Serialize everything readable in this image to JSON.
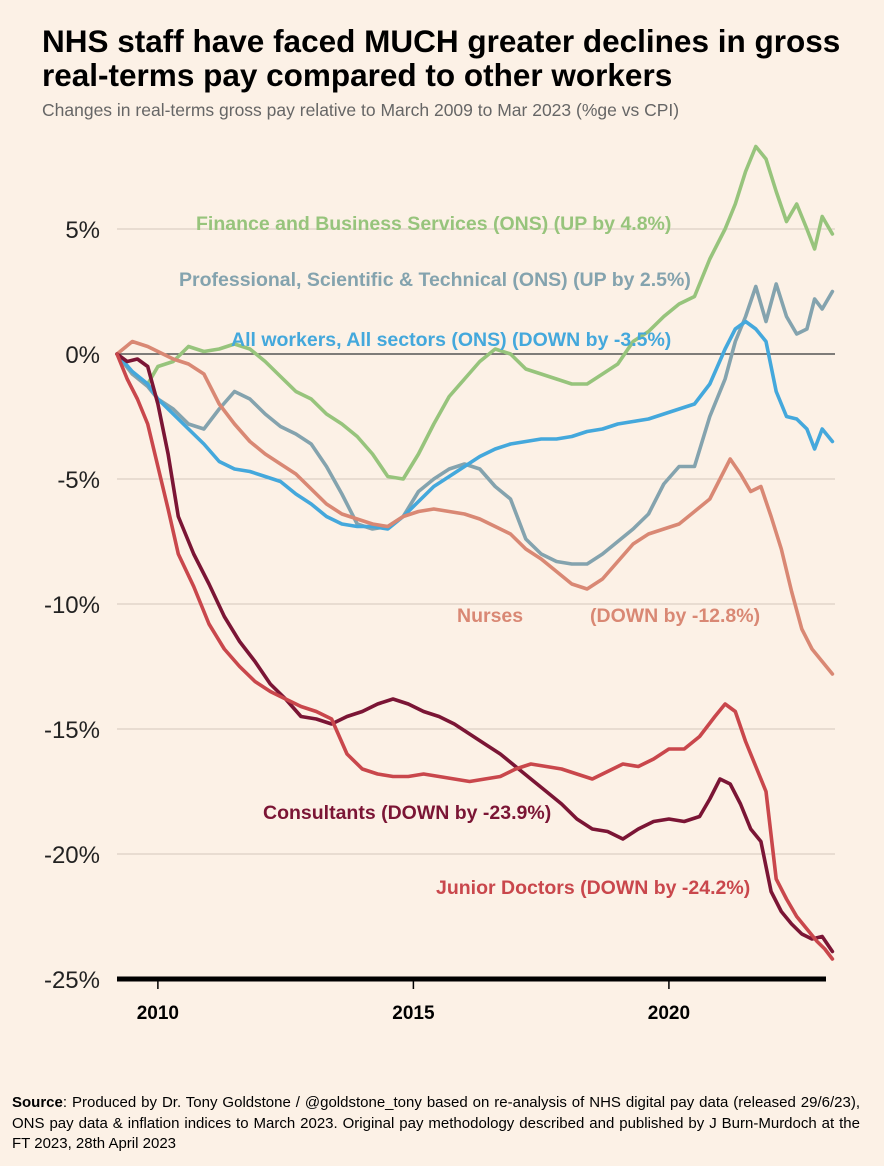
{
  "header": {
    "title": "NHS staff have faced MUCH greater declines in gross real-terms pay compared to other workers",
    "subtitle": "Changes in real-terms gross pay relative to March 2009 to Mar 2023 (%ge vs CPI)"
  },
  "source": {
    "label": "Source",
    "text": ": Produced by Dr. Tony Goldstone / @goldstone_tony based on re-analysis of NHS digital pay data (released 29/6/23), ONS pay data & inflation indices to March 2023.  Original pay methodology described and published by J Burn-Murdoch at the FT 2023, 28th April 2023"
  },
  "chart_data": {
    "type": "line",
    "title": "NHS staff have faced MUCH greater declines in gross real-terms pay compared to other workers",
    "subtitle": "Changes in real-terms gross pay relative to March 2009 to Mar 2023 (%ge vs CPI)",
    "xlabel": "",
    "ylabel": "",
    "xlim": [
      2009.2,
      2023.25
    ],
    "ylim": [
      -25,
      9
    ],
    "y_ticks": [
      {
        "value": 5,
        "label": "5%"
      },
      {
        "value": 0,
        "label": "0%"
      },
      {
        "value": -5,
        "label": "-5%"
      },
      {
        "value": -10,
        "label": "-10%"
      },
      {
        "value": -15,
        "label": "-15%"
      },
      {
        "value": -20,
        "label": "-20%"
      },
      {
        "value": -25,
        "label": "-25%"
      }
    ],
    "x_ticks": [
      {
        "value": 2010,
        "label": "2010"
      },
      {
        "value": 2015,
        "label": "2015"
      },
      {
        "value": 2020,
        "label": "2020"
      }
    ],
    "grid": true,
    "series": [
      {
        "name": "Finance and Business Services (ONS)",
        "label": "Finance and Business Services (ONS) (UP by 4.8%)",
        "color": "#97C47C",
        "x": [
          2009.2,
          2009.5,
          2009.8,
          2010.0,
          2010.3,
          2010.6,
          2010.9,
          2011.2,
          2011.5,
          2011.8,
          2012.1,
          2012.4,
          2012.7,
          2013.0,
          2013.3,
          2013.6,
          2013.9,
          2014.2,
          2014.5,
          2014.8,
          2015.1,
          2015.4,
          2015.7,
          2016.0,
          2016.3,
          2016.6,
          2016.9,
          2017.2,
          2017.5,
          2017.8,
          2018.1,
          2018.4,
          2018.7,
          2019.0,
          2019.3,
          2019.6,
          2019.9,
          2020.2,
          2020.5,
          2020.8,
          2021.1,
          2021.3,
          2021.5,
          2021.7,
          2021.9,
          2022.1,
          2022.3,
          2022.5,
          2022.7,
          2022.85,
          2023.0,
          2023.2
        ],
        "y": [
          0,
          -0.8,
          -1.2,
          -0.5,
          -0.3,
          0.3,
          0.1,
          0.2,
          0.4,
          0.2,
          -0.3,
          -0.9,
          -1.5,
          -1.8,
          -2.4,
          -2.8,
          -3.3,
          -4.0,
          -4.9,
          -5.0,
          -4.0,
          -2.8,
          -1.7,
          -1.0,
          -0.3,
          0.2,
          0.0,
          -0.6,
          -0.8,
          -1.0,
          -1.2,
          -1.2,
          -0.8,
          -0.4,
          0.5,
          0.9,
          1.5,
          2.0,
          2.3,
          3.8,
          5.0,
          6.0,
          7.3,
          8.3,
          7.8,
          6.5,
          5.3,
          6.0,
          5.0,
          4.2,
          5.5,
          4.8
        ]
      },
      {
        "name": "Professional, Scientific & Technical (ONS)",
        "label": "Professional, Scientific & Technical (ONS) (UP by 2.5%)",
        "color": "#84A3AE",
        "x": [
          2009.2,
          2009.5,
          2009.8,
          2010.0,
          2010.3,
          2010.6,
          2010.9,
          2011.2,
          2011.5,
          2011.8,
          2012.1,
          2012.4,
          2012.7,
          2013.0,
          2013.3,
          2013.6,
          2013.9,
          2014.2,
          2014.5,
          2014.8,
          2015.1,
          2015.4,
          2015.7,
          2016.0,
          2016.3,
          2016.6,
          2016.9,
          2017.2,
          2017.5,
          2017.8,
          2018.1,
          2018.4,
          2018.7,
          2019.0,
          2019.3,
          2019.6,
          2019.9,
          2020.2,
          2020.5,
          2020.8,
          2021.1,
          2021.3,
          2021.5,
          2021.7,
          2021.9,
          2022.1,
          2022.3,
          2022.5,
          2022.7,
          2022.85,
          2023.0,
          2023.2
        ],
        "y": [
          0,
          -0.8,
          -1.3,
          -1.8,
          -2.2,
          -2.8,
          -3.0,
          -2.2,
          -1.5,
          -1.8,
          -2.4,
          -2.9,
          -3.2,
          -3.6,
          -4.5,
          -5.6,
          -6.8,
          -7.0,
          -6.9,
          -6.5,
          -5.5,
          -5.0,
          -4.6,
          -4.4,
          -4.6,
          -5.3,
          -5.8,
          -7.4,
          -8.0,
          -8.3,
          -8.4,
          -8.4,
          -8.0,
          -7.5,
          -7.0,
          -6.4,
          -5.2,
          -4.5,
          -4.5,
          -2.5,
          -1.0,
          0.5,
          1.5,
          2.7,
          1.3,
          2.8,
          1.5,
          0.8,
          1.0,
          2.2,
          1.8,
          2.5
        ]
      },
      {
        "name": "All workers, All sectors (ONS)",
        "label": "All workers, All sectors (ONS) (DOWN by -3.5%)",
        "color": "#44A8DC",
        "x": [
          2009.2,
          2009.5,
          2009.8,
          2010.0,
          2010.3,
          2010.6,
          2010.9,
          2011.2,
          2011.5,
          2011.8,
          2012.1,
          2012.4,
          2012.7,
          2013.0,
          2013.3,
          2013.6,
          2013.9,
          2014.2,
          2014.5,
          2014.8,
          2015.1,
          2015.4,
          2015.7,
          2016.0,
          2016.3,
          2016.6,
          2016.9,
          2017.2,
          2017.5,
          2017.8,
          2018.1,
          2018.4,
          2018.7,
          2019.0,
          2019.3,
          2019.6,
          2019.9,
          2020.2,
          2020.5,
          2020.8,
          2021.1,
          2021.3,
          2021.5,
          2021.7,
          2021.9,
          2022.1,
          2022.3,
          2022.5,
          2022.7,
          2022.85,
          2023.0,
          2023.2
        ],
        "y": [
          0,
          -0.7,
          -1.2,
          -1.8,
          -2.4,
          -3.0,
          -3.6,
          -4.3,
          -4.6,
          -4.7,
          -4.9,
          -5.1,
          -5.6,
          -6.0,
          -6.5,
          -6.8,
          -6.9,
          -6.9,
          -7.0,
          -6.5,
          -5.9,
          -5.3,
          -4.9,
          -4.5,
          -4.1,
          -3.8,
          -3.6,
          -3.5,
          -3.4,
          -3.4,
          -3.3,
          -3.1,
          -3.0,
          -2.8,
          -2.7,
          -2.6,
          -2.4,
          -2.2,
          -2.0,
          -1.2,
          0.2,
          1.0,
          1.3,
          1.0,
          0.5,
          -1.5,
          -2.5,
          -2.6,
          -3.0,
          -3.8,
          -3.0,
          -3.5
        ]
      },
      {
        "name": "Nurses",
        "label": "Nurses",
        "annotation": "(DOWN by -12.8%)",
        "color": "#D98874",
        "x": [
          2009.2,
          2009.5,
          2009.8,
          2010.0,
          2010.3,
          2010.6,
          2010.9,
          2011.2,
          2011.5,
          2011.8,
          2012.1,
          2012.4,
          2012.7,
          2013.0,
          2013.3,
          2013.6,
          2013.9,
          2014.2,
          2014.5,
          2014.8,
          2015.1,
          2015.4,
          2015.7,
          2016.0,
          2016.3,
          2016.6,
          2016.9,
          2017.2,
          2017.5,
          2017.8,
          2018.1,
          2018.4,
          2018.7,
          2019.0,
          2019.3,
          2019.6,
          2019.9,
          2020.2,
          2020.5,
          2020.8,
          2021.0,
          2021.2,
          2021.4,
          2021.6,
          2021.8,
          2022.0,
          2022.2,
          2022.4,
          2022.6,
          2022.8,
          2023.0,
          2023.2
        ],
        "y": [
          0,
          0.5,
          0.3,
          0.1,
          -0.2,
          -0.4,
          -0.8,
          -2.0,
          -2.8,
          -3.5,
          -4.0,
          -4.4,
          -4.8,
          -5.4,
          -6.0,
          -6.4,
          -6.6,
          -6.8,
          -6.9,
          -6.5,
          -6.3,
          -6.2,
          -6.3,
          -6.4,
          -6.6,
          -6.9,
          -7.2,
          -7.8,
          -8.2,
          -8.7,
          -9.2,
          -9.4,
          -9.0,
          -8.3,
          -7.6,
          -7.2,
          -7.0,
          -6.8,
          -6.3,
          -5.8,
          -5.0,
          -4.2,
          -4.8,
          -5.5,
          -5.3,
          -6.5,
          -7.8,
          -9.5,
          -11.0,
          -11.8,
          -12.3,
          -12.8
        ]
      },
      {
        "name": "Consultants",
        "label": "Consultants (DOWN by -23.9%)",
        "color": "#7B1535",
        "x": [
          2009.2,
          2009.4,
          2009.6,
          2009.8,
          2010.0,
          2010.2,
          2010.4,
          2010.7,
          2011.0,
          2011.3,
          2011.6,
          2011.9,
          2012.2,
          2012.5,
          2012.8,
          2013.1,
          2013.4,
          2013.7,
          2014.0,
          2014.3,
          2014.6,
          2014.9,
          2015.2,
          2015.5,
          2015.8,
          2016.1,
          2016.4,
          2016.7,
          2017.0,
          2017.3,
          2017.6,
          2017.9,
          2018.2,
          2018.5,
          2018.8,
          2019.1,
          2019.4,
          2019.7,
          2020.0,
          2020.3,
          2020.6,
          2020.8,
          2021.0,
          2021.2,
          2021.4,
          2021.6,
          2021.8,
          2022.0,
          2022.2,
          2022.4,
          2022.6,
          2022.8,
          2023.0,
          2023.2
        ],
        "y": [
          0,
          -0.3,
          -0.2,
          -0.5,
          -2.0,
          -4.0,
          -6.5,
          -8.0,
          -9.2,
          -10.5,
          -11.5,
          -12.3,
          -13.2,
          -13.8,
          -14.5,
          -14.6,
          -14.8,
          -14.5,
          -14.3,
          -14.0,
          -13.8,
          -14.0,
          -14.3,
          -14.5,
          -14.8,
          -15.2,
          -15.6,
          -16.0,
          -16.5,
          -17.0,
          -17.5,
          -18.0,
          -18.6,
          -19.0,
          -19.1,
          -19.4,
          -19.0,
          -18.7,
          -18.6,
          -18.7,
          -18.5,
          -17.8,
          -17.0,
          -17.2,
          -18.0,
          -19.0,
          -19.5,
          -21.5,
          -22.3,
          -22.8,
          -23.2,
          -23.4,
          -23.3,
          -23.9
        ]
      },
      {
        "name": "Junior Doctors",
        "label": "Junior Doctors (DOWN by -24.2%)",
        "color": "#C9474C",
        "x": [
          2009.2,
          2009.4,
          2009.6,
          2009.8,
          2010.0,
          2010.2,
          2010.4,
          2010.7,
          2011.0,
          2011.3,
          2011.6,
          2011.9,
          2012.2,
          2012.5,
          2012.8,
          2013.1,
          2013.4,
          2013.7,
          2014.0,
          2014.3,
          2014.6,
          2014.9,
          2015.2,
          2015.5,
          2015.8,
          2016.1,
          2016.4,
          2016.7,
          2017.0,
          2017.3,
          2017.6,
          2017.9,
          2018.2,
          2018.5,
          2018.8,
          2019.1,
          2019.4,
          2019.7,
          2020.0,
          2020.3,
          2020.6,
          2020.9,
          2021.1,
          2021.3,
          2021.5,
          2021.7,
          2021.9,
          2022.1,
          2022.3,
          2022.5,
          2022.7,
          2022.9,
          2023.05,
          2023.2
        ],
        "y": [
          0,
          -1.0,
          -1.8,
          -2.8,
          -4.5,
          -6.2,
          -8.0,
          -9.3,
          -10.8,
          -11.8,
          -12.5,
          -13.1,
          -13.5,
          -13.8,
          -14.1,
          -14.3,
          -14.6,
          -16.0,
          -16.6,
          -16.8,
          -16.9,
          -16.9,
          -16.8,
          -16.9,
          -17.0,
          -17.1,
          -17.0,
          -16.9,
          -16.6,
          -16.4,
          -16.5,
          -16.6,
          -16.8,
          -17.0,
          -16.7,
          -16.4,
          -16.5,
          -16.2,
          -15.8,
          -15.8,
          -15.3,
          -14.5,
          -14.0,
          -14.3,
          -15.5,
          -16.5,
          -17.5,
          -21.0,
          -21.8,
          -22.5,
          -23.0,
          -23.5,
          -23.8,
          -24.2
        ]
      }
    ]
  }
}
